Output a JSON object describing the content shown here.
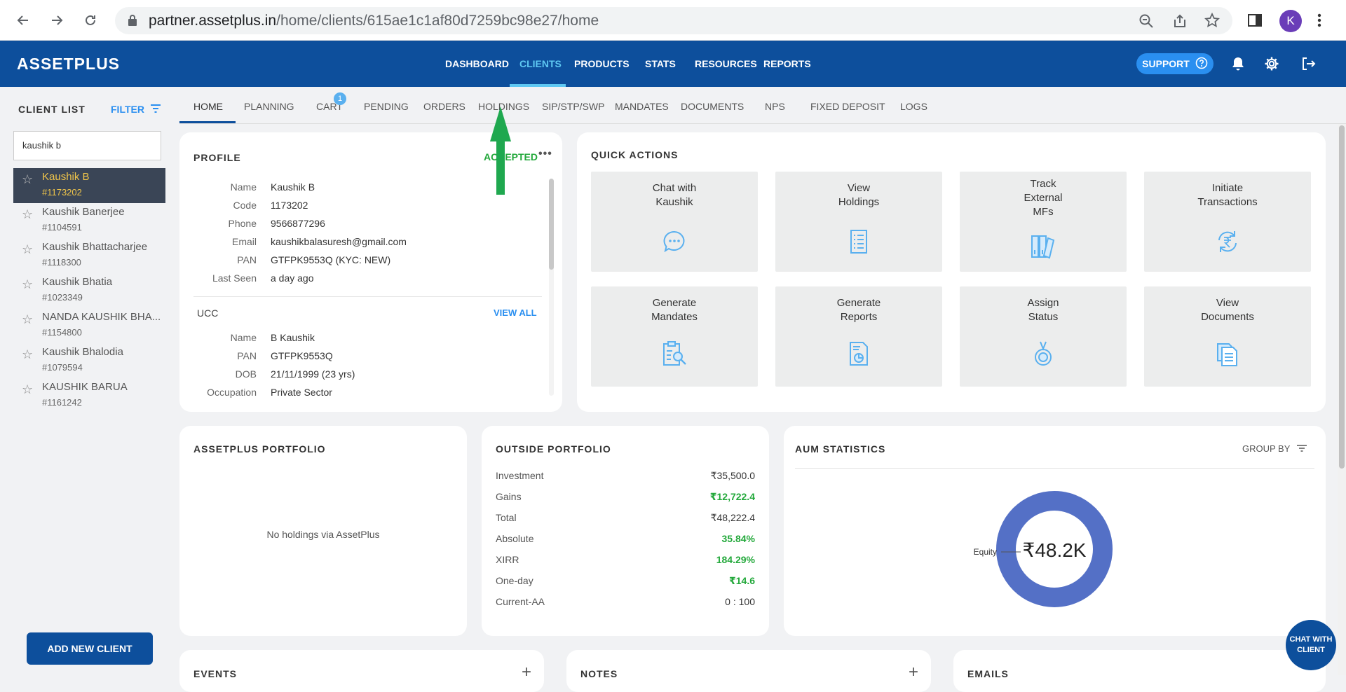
{
  "browser": {
    "url_host": "partner.assetplus.in",
    "url_path": "/home/clients/615ae1c1af80d7259bc98e27/home",
    "profile_initial": "K"
  },
  "appbar": {
    "logo": "ASSETPLUS",
    "nav": [
      "DASHBOARD",
      "CLIENTS",
      "PRODUCTS",
      "STATS",
      "RESOURCES",
      "REPORTS"
    ],
    "active_nav": "CLIENTS",
    "support_label": "SUPPORT"
  },
  "sidebar": {
    "title": "CLIENT LIST",
    "filter_label": "FILTER",
    "search_value": "kaushik b",
    "clients": [
      {
        "name": "Kaushik B",
        "code": "#1173202",
        "selected": true
      },
      {
        "name": "Kaushik Banerjee",
        "code": "#1104591"
      },
      {
        "name": "Kaushik Bhattacharjee",
        "code": "#1118300"
      },
      {
        "name": "Kaushik Bhatia",
        "code": "#1023349"
      },
      {
        "name": "NANDA KAUSHIK BHA...",
        "code": "#1154800"
      },
      {
        "name": "Kaushik Bhalodia",
        "code": "#1079594"
      },
      {
        "name": "KAUSHIK BARUA",
        "code": "#1161242"
      }
    ],
    "add_client_label": "ADD NEW CLIENT"
  },
  "subtabs": {
    "items": [
      "HOME",
      "PLANNING",
      "CART",
      "PENDING",
      "ORDERS",
      "HOLDINGS",
      "SIP/STP/SWP",
      "MANDATES",
      "DOCUMENTS",
      "NPS",
      "FIXED DEPOSIT",
      "LOGS"
    ],
    "active": "HOME",
    "cart_badge": "1"
  },
  "profile": {
    "title": "PROFILE",
    "status": "ACCEPTED",
    "fields": [
      {
        "label": "Name",
        "value": "Kaushik B"
      },
      {
        "label": "Code",
        "value": "1173202"
      },
      {
        "label": "Phone",
        "value": "9566877296"
      },
      {
        "label": "Email",
        "value": "kaushikbalasuresh@gmail.com"
      },
      {
        "label": "PAN",
        "value": "GTFPK9553Q (KYC: NEW)"
      },
      {
        "label": "Last Seen",
        "value": "a day ago"
      }
    ],
    "ucc_title": "UCC",
    "view_all": "VIEW ALL",
    "ucc_fields": [
      {
        "label": "Name",
        "value": "B Kaushik"
      },
      {
        "label": "PAN",
        "value": "GTFPK9553Q"
      },
      {
        "label": "DOB",
        "value": "21/11/1999 (23 yrs)"
      },
      {
        "label": "Occupation",
        "value": "Private Sector"
      }
    ]
  },
  "quick_actions": {
    "title": "QUICK ACTIONS",
    "items": [
      {
        "label": "Chat with\nKaushik",
        "icon": "chat-icon"
      },
      {
        "label": "View\nHoldings",
        "icon": "holdings-list-icon"
      },
      {
        "label": "Track\nExternal\nMFs",
        "icon": "folders-icon"
      },
      {
        "label": "Initiate\nTransactions",
        "icon": "rupee-refresh-icon"
      },
      {
        "label": "Generate\nMandates",
        "icon": "clipboard-search-icon"
      },
      {
        "label": "Generate\nReports",
        "icon": "report-chart-icon"
      },
      {
        "label": "Assign\nStatus",
        "icon": "status-medal-icon"
      },
      {
        "label": "View\nDocuments",
        "icon": "documents-icon"
      }
    ]
  },
  "assetplus_portfolio": {
    "title": "ASSETPLUS PORTFOLIO",
    "empty_text": "No holdings via AssetPlus"
  },
  "outside_portfolio": {
    "title": "OUTSIDE PORTFOLIO",
    "rows": [
      {
        "label": "Investment",
        "value": "₹35,500.0",
        "green": false
      },
      {
        "label": "Gains",
        "value": "₹12,722.4",
        "green": true
      },
      {
        "label": "Total",
        "value": "₹48,222.4",
        "green": false
      },
      {
        "label": "Absolute",
        "value": "35.84%",
        "green": true
      },
      {
        "label": "XIRR",
        "value": "184.29%",
        "green": true
      },
      {
        "label": "One-day",
        "value": "₹14.6",
        "green": true
      },
      {
        "label": "Current-AA",
        "value": "0 : 100",
        "green": false
      }
    ]
  },
  "aum_statistics": {
    "title": "AUM STATISTICS",
    "group_by": "GROUP BY",
    "center_value": "₹48.2K"
  },
  "chart_data": {
    "type": "pie",
    "categories": [
      "Equity"
    ],
    "values": [
      100
    ],
    "colors": [
      "#5470c6"
    ]
  },
  "bottom_cards": [
    "EVENTS",
    "NOTES",
    "EMAILS"
  ],
  "chat_fab": "CHAT WITH CLIENT",
  "colors": {
    "brand": "#0d4f9c",
    "accent": "#5ec8f2",
    "green": "#22a83a",
    "donut": "#5470c6"
  }
}
